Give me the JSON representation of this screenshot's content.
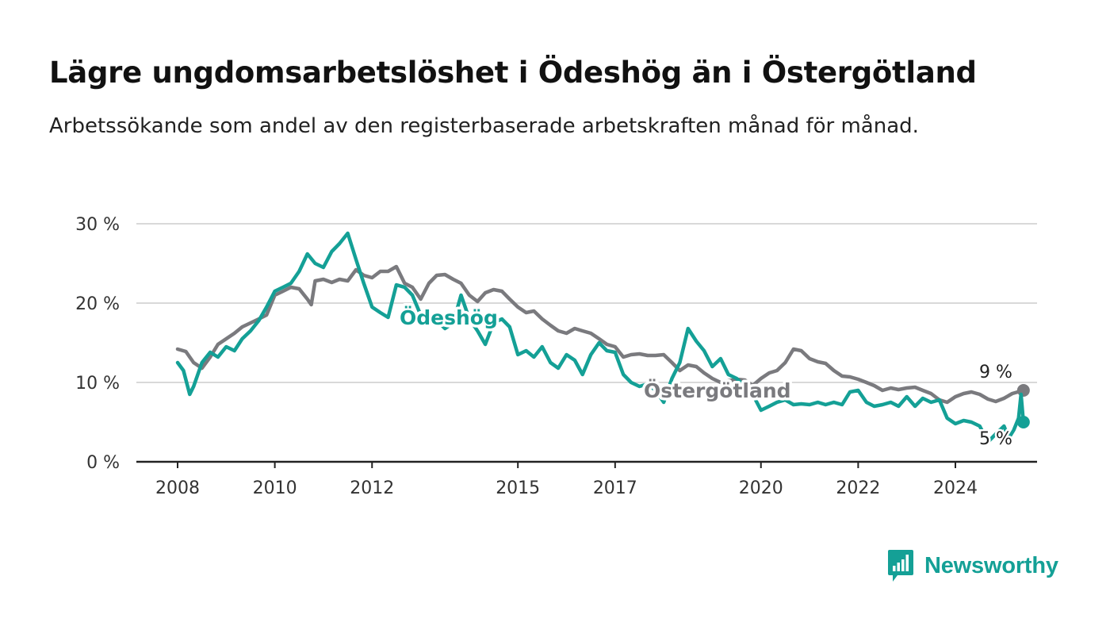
{
  "title": "Lägre ungdomsarbetslöshet i Ödeshög än i Östergötland",
  "subtitle": "Arbetssökande som andel av den registerbaserade arbetskraften månad för månad.",
  "brand": {
    "name": "Newsworthy",
    "color": "#14a096"
  },
  "chart_data": {
    "type": "line",
    "x_unit": "year (decimal)",
    "y_unit": "percent",
    "ylim": [
      0,
      30
    ],
    "yticks": [
      0,
      10,
      20,
      30
    ],
    "ytick_labels": [
      "0 %",
      "10 %",
      "20 %",
      "30 %"
    ],
    "xlim": [
      2007.1,
      2025.6
    ],
    "xticks": [
      2008,
      2010,
      2012,
      2015,
      2017,
      2020,
      2022,
      2024
    ],
    "xtick_labels": [
      "2008",
      "2010",
      "2012",
      "2015",
      "2017",
      "2020",
      "2022",
      "2024"
    ],
    "grid": true,
    "legend": "inline labels on lines",
    "series": [
      {
        "name": "Östergötland",
        "color": "#7a7a7e",
        "end_label": "9 %",
        "points": [
          [
            2008.0,
            14.2
          ],
          [
            2008.17,
            13.9
          ],
          [
            2008.33,
            12.5
          ],
          [
            2008.5,
            11.8
          ],
          [
            2008.67,
            13.2
          ],
          [
            2008.83,
            14.8
          ],
          [
            2009.0,
            15.5
          ],
          [
            2009.17,
            16.2
          ],
          [
            2009.33,
            17.0
          ],
          [
            2009.5,
            17.5
          ],
          [
            2009.67,
            18.0
          ],
          [
            2009.83,
            18.5
          ],
          [
            2010.0,
            21.0
          ],
          [
            2010.17,
            21.5
          ],
          [
            2010.33,
            22.0
          ],
          [
            2010.5,
            21.8
          ],
          [
            2010.67,
            20.5
          ],
          [
            2010.75,
            19.8
          ],
          [
            2010.83,
            22.8
          ],
          [
            2011.0,
            23.0
          ],
          [
            2011.17,
            22.6
          ],
          [
            2011.33,
            23.0
          ],
          [
            2011.5,
            22.8
          ],
          [
            2011.67,
            24.2
          ],
          [
            2011.83,
            23.5
          ],
          [
            2012.0,
            23.2
          ],
          [
            2012.17,
            24.0
          ],
          [
            2012.33,
            24.0
          ],
          [
            2012.5,
            24.6
          ],
          [
            2012.67,
            22.5
          ],
          [
            2012.83,
            22.0
          ],
          [
            2013.0,
            20.5
          ],
          [
            2013.17,
            22.5
          ],
          [
            2013.33,
            23.5
          ],
          [
            2013.5,
            23.6
          ],
          [
            2013.67,
            23.0
          ],
          [
            2013.83,
            22.5
          ],
          [
            2014.0,
            21.0
          ],
          [
            2014.17,
            20.2
          ],
          [
            2014.33,
            21.3
          ],
          [
            2014.5,
            21.7
          ],
          [
            2014.67,
            21.5
          ],
          [
            2014.83,
            20.5
          ],
          [
            2015.0,
            19.5
          ],
          [
            2015.17,
            18.8
          ],
          [
            2015.33,
            19.0
          ],
          [
            2015.5,
            18.0
          ],
          [
            2015.67,
            17.2
          ],
          [
            2015.83,
            16.5
          ],
          [
            2016.0,
            16.2
          ],
          [
            2016.17,
            16.8
          ],
          [
            2016.33,
            16.5
          ],
          [
            2016.5,
            16.2
          ],
          [
            2016.67,
            15.5
          ],
          [
            2016.83,
            14.8
          ],
          [
            2017.0,
            14.5
          ],
          [
            2017.17,
            13.2
          ],
          [
            2017.33,
            13.5
          ],
          [
            2017.5,
            13.6
          ],
          [
            2017.67,
            13.4
          ],
          [
            2017.83,
            13.4
          ],
          [
            2018.0,
            13.5
          ],
          [
            2018.17,
            12.5
          ],
          [
            2018.33,
            11.5
          ],
          [
            2018.5,
            12.2
          ],
          [
            2018.67,
            12.0
          ],
          [
            2018.83,
            11.2
          ],
          [
            2019.0,
            10.5
          ],
          [
            2019.17,
            10.0
          ],
          [
            2019.33,
            10.2
          ],
          [
            2019.5,
            10.4
          ],
          [
            2019.67,
            10.3
          ],
          [
            2019.83,
            9.6
          ],
          [
            2020.0,
            10.5
          ],
          [
            2020.17,
            11.2
          ],
          [
            2020.33,
            11.5
          ],
          [
            2020.5,
            12.5
          ],
          [
            2020.67,
            14.2
          ],
          [
            2020.83,
            14.0
          ],
          [
            2021.0,
            13.0
          ],
          [
            2021.17,
            12.6
          ],
          [
            2021.33,
            12.4
          ],
          [
            2021.5,
            11.5
          ],
          [
            2021.67,
            10.8
          ],
          [
            2021.83,
            10.7
          ],
          [
            2022.0,
            10.4
          ],
          [
            2022.17,
            10.0
          ],
          [
            2022.33,
            9.6
          ],
          [
            2022.5,
            9.0
          ],
          [
            2022.67,
            9.3
          ],
          [
            2022.83,
            9.1
          ],
          [
            2023.0,
            9.3
          ],
          [
            2023.17,
            9.4
          ],
          [
            2023.33,
            9.0
          ],
          [
            2023.5,
            8.6
          ],
          [
            2023.67,
            7.8
          ],
          [
            2023.83,
            7.5
          ],
          [
            2024.0,
            8.2
          ],
          [
            2024.17,
            8.6
          ],
          [
            2024.33,
            8.8
          ],
          [
            2024.5,
            8.5
          ],
          [
            2024.67,
            7.9
          ],
          [
            2024.83,
            7.6
          ],
          [
            2025.0,
            8.0
          ],
          [
            2025.17,
            8.6
          ],
          [
            2025.4,
            9.0
          ]
        ]
      },
      {
        "name": "Ödeshög",
        "color": "#14a096",
        "end_label": "5 %",
        "points": [
          [
            2008.0,
            12.5
          ],
          [
            2008.12,
            11.5
          ],
          [
            2008.25,
            8.5
          ],
          [
            2008.33,
            9.5
          ],
          [
            2008.5,
            12.5
          ],
          [
            2008.67,
            13.8
          ],
          [
            2008.83,
            13.2
          ],
          [
            2009.0,
            14.5
          ],
          [
            2009.17,
            14.0
          ],
          [
            2009.33,
            15.5
          ],
          [
            2009.5,
            16.5
          ],
          [
            2009.67,
            17.8
          ],
          [
            2009.83,
            19.5
          ],
          [
            2010.0,
            21.5
          ],
          [
            2010.17,
            22.0
          ],
          [
            2010.33,
            22.5
          ],
          [
            2010.5,
            24.0
          ],
          [
            2010.67,
            26.2
          ],
          [
            2010.83,
            25.0
          ],
          [
            2011.0,
            24.5
          ],
          [
            2011.17,
            26.5
          ],
          [
            2011.33,
            27.5
          ],
          [
            2011.5,
            28.8
          ],
          [
            2011.67,
            25.5
          ],
          [
            2011.83,
            22.5
          ],
          [
            2012.0,
            19.5
          ],
          [
            2012.17,
            18.8
          ],
          [
            2012.33,
            18.2
          ],
          [
            2012.5,
            22.3
          ],
          [
            2012.67,
            22.0
          ],
          [
            2012.83,
            21.0
          ],
          [
            2013.0,
            18.5
          ],
          [
            2013.17,
            18.0
          ],
          [
            2013.33,
            17.8
          ],
          [
            2013.5,
            16.8
          ],
          [
            2013.67,
            17.5
          ],
          [
            2013.83,
            21.0
          ],
          [
            2014.0,
            18.0
          ],
          [
            2014.17,
            16.5
          ],
          [
            2014.33,
            14.8
          ],
          [
            2014.5,
            17.5
          ],
          [
            2014.67,
            18.0
          ],
          [
            2014.83,
            17.0
          ],
          [
            2015.0,
            13.5
          ],
          [
            2015.17,
            14.0
          ],
          [
            2015.33,
            13.2
          ],
          [
            2015.5,
            14.5
          ],
          [
            2015.67,
            12.5
          ],
          [
            2015.83,
            11.8
          ],
          [
            2016.0,
            13.5
          ],
          [
            2016.17,
            12.8
          ],
          [
            2016.33,
            11.0
          ],
          [
            2016.5,
            13.5
          ],
          [
            2016.67,
            15.0
          ],
          [
            2016.83,
            14.0
          ],
          [
            2017.0,
            13.8
          ],
          [
            2017.17,
            11.0
          ],
          [
            2017.33,
            10.0
          ],
          [
            2017.5,
            9.5
          ],
          [
            2017.67,
            9.8
          ],
          [
            2017.83,
            9.0
          ],
          [
            2018.0,
            7.5
          ],
          [
            2018.17,
            10.5
          ],
          [
            2018.33,
            12.5
          ],
          [
            2018.5,
            16.8
          ],
          [
            2018.67,
            15.2
          ],
          [
            2018.83,
            14.0
          ],
          [
            2019.0,
            12.0
          ],
          [
            2019.17,
            13.0
          ],
          [
            2019.33,
            11.0
          ],
          [
            2019.5,
            10.5
          ],
          [
            2019.67,
            9.5
          ],
          [
            2019.83,
            8.5
          ],
          [
            2020.0,
            6.5
          ],
          [
            2020.17,
            7.0
          ],
          [
            2020.33,
            7.5
          ],
          [
            2020.5,
            7.8
          ],
          [
            2020.67,
            7.2
          ],
          [
            2020.83,
            7.3
          ],
          [
            2021.0,
            7.2
          ],
          [
            2021.17,
            7.5
          ],
          [
            2021.33,
            7.2
          ],
          [
            2021.5,
            7.5
          ],
          [
            2021.67,
            7.2
          ],
          [
            2021.83,
            8.8
          ],
          [
            2022.0,
            9.0
          ],
          [
            2022.17,
            7.5
          ],
          [
            2022.33,
            7.0
          ],
          [
            2022.5,
            7.2
          ],
          [
            2022.67,
            7.5
          ],
          [
            2022.83,
            7.0
          ],
          [
            2023.0,
            8.2
          ],
          [
            2023.17,
            7.0
          ],
          [
            2023.33,
            8.0
          ],
          [
            2023.5,
            7.5
          ],
          [
            2023.67,
            7.8
          ],
          [
            2023.83,
            5.5
          ],
          [
            2024.0,
            4.8
          ],
          [
            2024.17,
            5.2
          ],
          [
            2024.33,
            5.0
          ],
          [
            2024.5,
            4.5
          ],
          [
            2024.67,
            2.5
          ],
          [
            2024.83,
            3.5
          ],
          [
            2025.0,
            4.5
          ],
          [
            2025.1,
            3.0
          ],
          [
            2025.2,
            4.0
          ],
          [
            2025.3,
            5.5
          ],
          [
            2025.35,
            8.5
          ],
          [
            2025.4,
            5.0
          ]
        ]
      }
    ]
  }
}
